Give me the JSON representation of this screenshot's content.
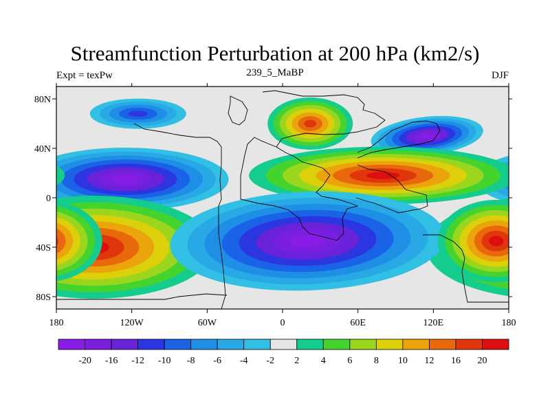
{
  "title": "Streamfunction Perturbation at 200 hPa (km2/s)",
  "subtitle_left": "Expt = texPw",
  "subtitle_center": "239_5_MaBP",
  "subtitle_right": "DJF",
  "chart_data": {
    "type": "heatmap",
    "projection": "cylindrical equidistant",
    "xlim": [
      -180,
      180
    ],
    "ylim": [
      -90,
      90
    ],
    "x_ticks": [
      {
        "value": -180,
        "label": "180"
      },
      {
        "value": -120,
        "label": "120W"
      },
      {
        "value": -60,
        "label": "60W"
      },
      {
        "value": 0,
        "label": "0"
      },
      {
        "value": 60,
        "label": "60E"
      },
      {
        "value": 120,
        "label": "120E"
      },
      {
        "value": 180,
        "label": "180"
      }
    ],
    "y_ticks": [
      {
        "value": 80,
        "label": "80N"
      },
      {
        "value": 40,
        "label": "40N"
      },
      {
        "value": 0,
        "label": "0"
      },
      {
        "value": -40,
        "label": "40S"
      },
      {
        "value": -80,
        "label": "80S"
      }
    ],
    "colorbar": {
      "orientation": "horizontal",
      "labels": [
        "-20",
        "-16",
        "-12",
        "-10",
        "-8",
        "-6",
        "-4",
        "-2",
        "2",
        "4",
        "6",
        "8",
        "10",
        "12",
        "16",
        "20"
      ],
      "colors": [
        "#8a1ce8",
        "#7a1fe0",
        "#6a22d8",
        "#2b36e0",
        "#1a62e6",
        "#1f8fe6",
        "#29a8e6",
        "#31c0e3",
        "#e6e6e6",
        "#14cc8c",
        "#45d42e",
        "#9ad61e",
        "#dcd00b",
        "#eba40c",
        "#e8680c",
        "#e0360c",
        "#dc0e0e"
      ]
    },
    "features": [
      {
        "name": "cyclone-north-pacific",
        "lon": -115,
        "lat": 68,
        "value": -6
      },
      {
        "name": "anticyclone-europe",
        "lon": 22,
        "lat": 60,
        "value": 12
      },
      {
        "name": "cyclone-east-asia",
        "lon": 115,
        "lat": 50,
        "value": -12
      },
      {
        "name": "cyclone-tropical-pacific",
        "lon": -125,
        "lat": 15,
        "value": -20
      },
      {
        "name": "anticyclone-asia",
        "lon": 80,
        "lat": 18,
        "value": 20
      },
      {
        "name": "anticyclone-south-pacific",
        "lon": -150,
        "lat": -40,
        "value": 20
      },
      {
        "name": "cyclone-southern",
        "lon": 20,
        "lat": -35,
        "value": -20
      },
      {
        "name": "anticyclone-southwest-pacific",
        "lon": 170,
        "lat": -35,
        "value": 20
      }
    ]
  }
}
